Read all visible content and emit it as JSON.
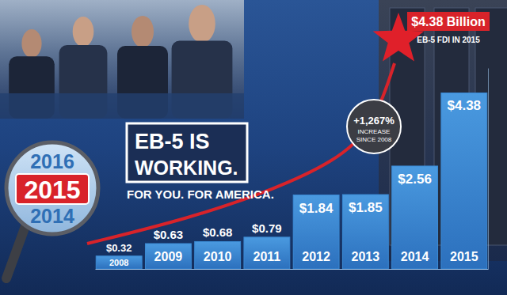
{
  "chart_data": {
    "type": "bar",
    "title": "EB-5 IS WORKING.",
    "subtitle": "FOR YOU. FOR AMERICA.",
    "categories": [
      "2008",
      "2009",
      "2010",
      "2011",
      "2012",
      "2013",
      "2014",
      "2015"
    ],
    "values": [
      0.32,
      0.63,
      0.68,
      0.79,
      1.84,
      1.85,
      2.56,
      4.38
    ],
    "value_labels": [
      "$0.32",
      "$0.63",
      "$0.68",
      "$0.79",
      "$1.84",
      "$1.85",
      "$2.56",
      "$4.38"
    ],
    "color": "#3b8ad4",
    "ylim": [
      0,
      5
    ],
    "yticks": [],
    "tick_labels": "x",
    "data_labels": true,
    "annotations": [
      {
        "text": "+1,267%"
      },
      {
        "text": "INCREASE SINCE 2008"
      },
      {
        "text": "$4.38 Billion"
      },
      {
        "text": "EB-5 FDI IN 2015"
      },
      {
        "text": "2016"
      },
      {
        "text": "2015"
      },
      {
        "text": "2014"
      }
    ]
  }
}
